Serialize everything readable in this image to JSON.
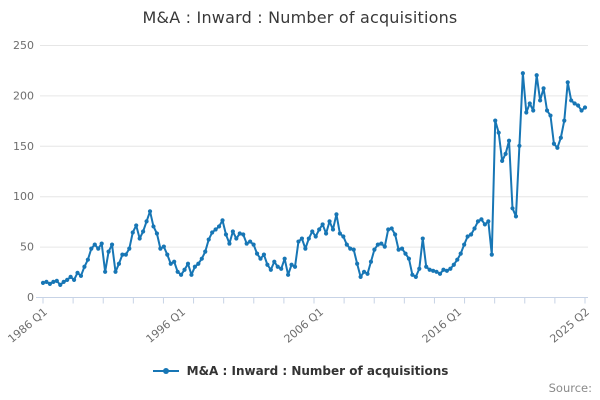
{
  "header": {
    "title": "M&A : Inward : Number of acquisitions"
  },
  "legend": {
    "label": "M&A : Inward : Number of acquisitions"
  },
  "footer": {
    "source_label": "Source:"
  },
  "colors": {
    "line": "#1776b5",
    "grid": "#e6e6e6",
    "axis": "#c7d3e6",
    "tick_label": "#6e6e6e",
    "title_text": "#383838",
    "legend_text": "#333333",
    "source_text": "#8a8a8a"
  },
  "chart_data": {
    "type": "line",
    "title": "M&A : Inward : Number of acquisitions",
    "xlabel": "",
    "ylabel": "",
    "grid": "horizontal",
    "legend_position": "bottom",
    "y_axis": {
      "ticks": [
        0,
        50,
        100,
        150,
        200,
        250
      ],
      "ylim": [
        0,
        250
      ]
    },
    "x_axis": {
      "minor_tick_count": 19,
      "labeled_ticks": [
        {
          "label": "1986 Q1",
          "quarter_index": 0
        },
        {
          "label": "1996 Q1",
          "quarter_index": 40
        },
        {
          "label": "2006 Q1",
          "quarter_index": 80
        },
        {
          "label": "2016 Q1",
          "quarter_index": 120
        },
        {
          "label": "2025 Q2",
          "quarter_index": 157
        }
      ]
    },
    "series": [
      {
        "name": "M&A : Inward : Number of acquisitions",
        "start": "1986 Q1",
        "end": "2025 Q2",
        "frequency": "quarterly",
        "color": "#1776b5",
        "values": [
          14,
          15,
          13,
          15,
          16,
          12,
          15,
          17,
          20,
          17,
          24,
          21,
          30,
          37,
          48,
          52,
          48,
          53,
          25,
          45,
          52,
          25,
          33,
          42,
          42,
          48,
          64,
          71,
          58,
          65,
          75,
          85,
          70,
          63,
          48,
          50,
          42,
          33,
          35,
          25,
          22,
          27,
          33,
          22,
          30,
          33,
          38,
          45,
          57,
          64,
          67,
          70,
          76,
          62,
          53,
          65,
          58,
          63,
          62,
          53,
          55,
          52,
          43,
          38,
          42,
          32,
          27,
          35,
          30,
          28,
          38,
          22,
          32,
          30,
          55,
          58,
          48,
          58,
          65,
          60,
          67,
          72,
          63,
          75,
          67,
          82,
          63,
          60,
          52,
          48,
          47,
          33,
          20,
          25,
          23,
          35,
          47,
          52,
          53,
          50,
          67,
          68,
          62,
          47,
          48,
          43,
          38,
          22,
          20,
          28,
          58,
          30,
          27,
          26,
          25,
          23,
          27,
          26,
          28,
          32,
          37,
          43,
          52,
          60,
          62,
          68,
          75,
          77,
          72,
          75,
          42,
          175,
          163,
          135,
          142,
          155,
          88,
          80,
          150,
          222,
          183,
          192,
          185,
          220,
          195,
          207,
          185,
          180,
          152,
          148,
          158,
          175,
          213,
          195,
          192,
          190,
          185,
          188
        ]
      }
    ]
  }
}
